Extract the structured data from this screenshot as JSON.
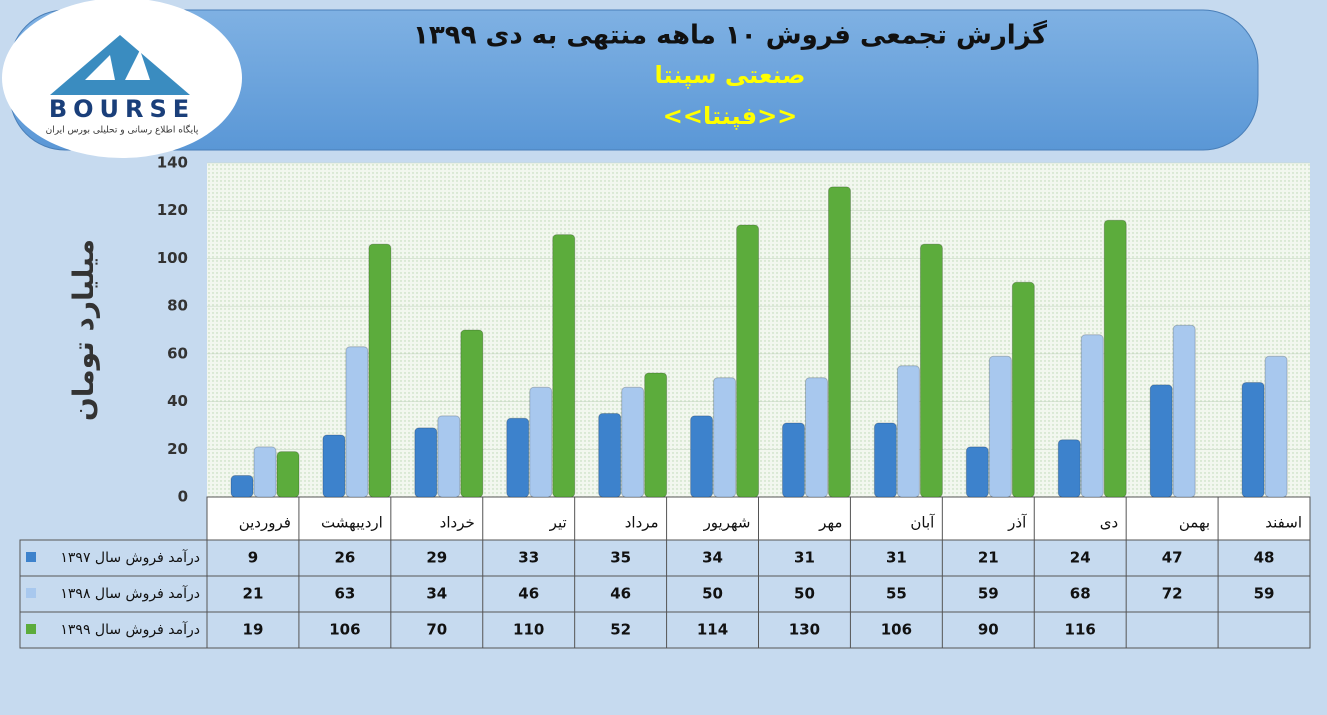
{
  "logo": {
    "name": "BOURSE",
    "tagline": "پایگاه اطلاع رسانی و تحلیلی بورس ایران"
  },
  "chart_data": {
    "type": "bar",
    "title": "گزارش تجمعی فروش ۱۰ ماهه منتهی به دی ۱۳۹۹",
    "subtitle": "صنعتی سپنتا",
    "symbol": "<<فپنتا>>",
    "y_label": "میلیارد تومان",
    "categories": [
      "فروردین",
      "اردیبهشت",
      "خرداد",
      "تیر",
      "مرداد",
      "شهریور",
      "مهر",
      "آبان",
      "آذر",
      "دی",
      "بهمن",
      "اسفند"
    ],
    "series": [
      {
        "name": "درآمد فروش سال ۱۳۹۷",
        "color": "#3d82cc",
        "values": [
          9,
          26,
          29,
          33,
          35,
          34,
          31,
          31,
          21,
          24,
          47,
          48
        ]
      },
      {
        "name": "درآمد فروش سال ۱۳۹۸",
        "color": "#a8c8ee",
        "values": [
          21,
          63,
          34,
          46,
          46,
          50,
          50,
          55,
          59,
          68,
          72,
          59
        ]
      },
      {
        "name": "درآمد فروش سال ۱۳۹۹",
        "color": "#5cac3c",
        "values": [
          19,
          106,
          70,
          110,
          52,
          114,
          130,
          106,
          90,
          116,
          null,
          null
        ]
      }
    ],
    "ylim": [
      0,
      140
    ],
    "yticks": [
      0,
      20,
      40,
      60,
      80,
      100,
      120,
      140
    ],
    "grid": true
  }
}
